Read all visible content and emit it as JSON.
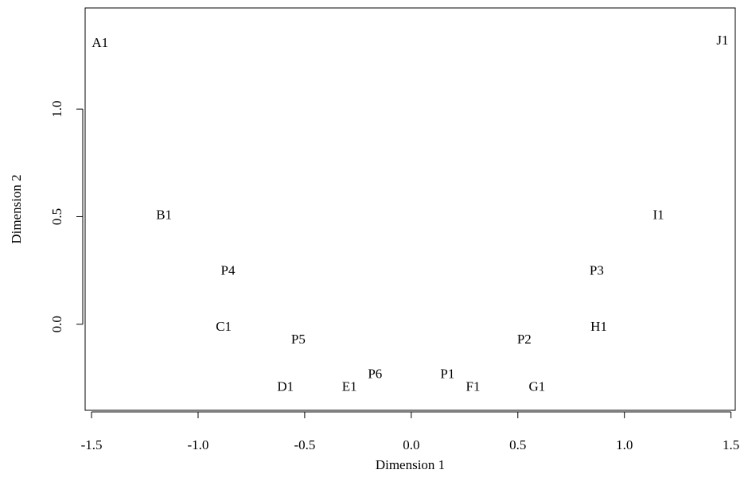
{
  "chart_data": {
    "type": "scatter",
    "title": "",
    "xlabel": "Dimension 1",
    "ylabel": "Dimension 2",
    "xlim": [
      -1.53,
      1.52
    ],
    "ylim": [
      -0.4,
      1.47
    ],
    "x_ticks": [
      -1.5,
      -1.0,
      -0.5,
      0.0,
      0.5,
      1.0,
      1.5
    ],
    "x_tick_labels": [
      "-1.5",
      "-1.0",
      "-0.5",
      "0.0",
      "0.5",
      "1.0",
      "1.5"
    ],
    "y_ticks": [
      0.0,
      0.5,
      1.0
    ],
    "y_tick_labels": [
      "0.0",
      "0.5",
      "1.0"
    ],
    "grid": false,
    "points": [
      {
        "label": "A1",
        "x": -1.46,
        "y": 1.31
      },
      {
        "label": "B1",
        "x": -1.16,
        "y": 0.51
      },
      {
        "label": "C1",
        "x": -0.88,
        "y": -0.01
      },
      {
        "label": "D1",
        "x": -0.59,
        "y": -0.29
      },
      {
        "label": "E1",
        "x": -0.29,
        "y": -0.29
      },
      {
        "label": "F1",
        "x": 0.29,
        "y": -0.29
      },
      {
        "label": "G1",
        "x": 0.59,
        "y": -0.29
      },
      {
        "label": "H1",
        "x": 0.88,
        "y": -0.01
      },
      {
        "label": "I1",
        "x": 1.16,
        "y": 0.51
      },
      {
        "label": "J1",
        "x": 1.46,
        "y": 1.32
      },
      {
        "label": "P1",
        "x": 0.17,
        "y": -0.23
      },
      {
        "label": "P2",
        "x": 0.53,
        "y": -0.07
      },
      {
        "label": "P3",
        "x": 0.87,
        "y": 0.25
      },
      {
        "label": "P4",
        "x": -0.86,
        "y": 0.25
      },
      {
        "label": "P5",
        "x": -0.53,
        "y": -0.07
      },
      {
        "label": "P6",
        "x": -0.17,
        "y": -0.23
      }
    ]
  }
}
